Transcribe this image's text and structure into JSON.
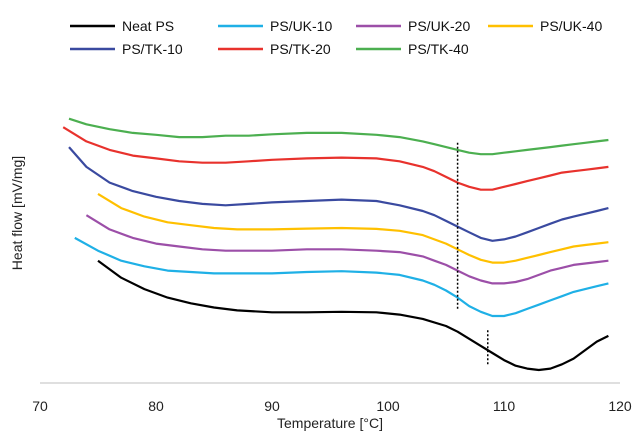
{
  "chart_data": {
    "type": "line",
    "xlabel": "Temperature [°C]",
    "ylabel": "Heat flow [mV/mg]",
    "xlim": [
      70,
      120
    ],
    "xticks": [
      70,
      80,
      90,
      100,
      110,
      120
    ],
    "ylim": [
      0,
      100
    ],
    "y_ticks_shown": false,
    "grid": false,
    "legend_position": "top",
    "series": [
      {
        "name": "Neat PS",
        "color": "#000000",
        "x": [
          75,
          77,
          79,
          81,
          83,
          85,
          87,
          90,
          93,
          96,
          99,
          101,
          103,
          105,
          106,
          107,
          108,
          109,
          110,
          111,
          112,
          113,
          114,
          115,
          116,
          117,
          118,
          119
        ],
        "y": [
          38.5,
          32.5,
          28.5,
          25.5,
          23.5,
          22,
          21,
          20.3,
          20.3,
          20.5,
          20.3,
          19.5,
          18,
          15.5,
          13.5,
          11,
          8.5,
          6,
          3.5,
          1.5,
          0.5,
          0,
          0.5,
          2,
          4,
          7,
          10,
          12
        ]
      },
      {
        "name": "PS/UK-10",
        "color": "#1fb0e6",
        "x": [
          73,
          75,
          77,
          79,
          81,
          83,
          85,
          87,
          90,
          93,
          96,
          99,
          101,
          103,
          104,
          105,
          106,
          107,
          108,
          109,
          110,
          111,
          112,
          113,
          114,
          115,
          116,
          117,
          118,
          119
        ],
        "y": [
          46.5,
          42,
          38.5,
          36.5,
          35,
          34.5,
          34,
          34,
          34,
          34.5,
          34.8,
          34.3,
          33.5,
          31.5,
          30,
          28,
          25.5,
          22.5,
          20.5,
          19,
          19,
          20,
          21.5,
          23,
          24.5,
          26,
          27.5,
          28.5,
          29.5,
          30.5
        ]
      },
      {
        "name": "PS/UK-20",
        "color": "#9c4fa8",
        "x": [
          74,
          76,
          78,
          80,
          82,
          84,
          86,
          88,
          90,
          93,
          96,
          99,
          101,
          103,
          104,
          105,
          106,
          107,
          108,
          109,
          110,
          111,
          112,
          113,
          114,
          115,
          116,
          117,
          118,
          119
        ],
        "y": [
          54.5,
          49.5,
          46.5,
          44.5,
          43.5,
          42.5,
          42,
          42,
          42,
          42.5,
          42.5,
          42,
          41.5,
          40,
          38.5,
          37,
          35,
          33,
          31.5,
          30.5,
          30.5,
          31,
          32,
          33.5,
          35,
          36,
          37,
          37.5,
          38,
          38.5
        ]
      },
      {
        "name": "PS/UK-40",
        "color": "#ffc000",
        "x": [
          75,
          77,
          79,
          81,
          83,
          85,
          87,
          90,
          93,
          96,
          99,
          101,
          103,
          104,
          105,
          106,
          107,
          108,
          109,
          110,
          111,
          112,
          113,
          114,
          115,
          116,
          117,
          118,
          119
        ],
        "y": [
          62,
          57,
          54,
          52,
          51,
          50,
          49.5,
          49.5,
          49.8,
          50,
          49.7,
          49,
          47.5,
          46,
          44.5,
          42.5,
          40.5,
          38.8,
          37.8,
          37.8,
          38.5,
          39.5,
          40.5,
          41.5,
          42.5,
          43.5,
          44,
          44.5,
          45
        ]
      },
      {
        "name": "PS/TK-10",
        "color": "#3a4aa0",
        "x": [
          72.5,
          74,
          76,
          78,
          80,
          82,
          84,
          86,
          88,
          90,
          93,
          96,
          99,
          101,
          103,
          104,
          105,
          106,
          107,
          108,
          109,
          110,
          111,
          112,
          113,
          114,
          115,
          116,
          117,
          118,
          119
        ],
        "y": [
          78.5,
          71.5,
          66,
          63,
          61,
          59.5,
          58.5,
          58,
          58.5,
          59,
          59.5,
          60,
          59.5,
          58,
          56,
          54.5,
          52.5,
          50.5,
          48.5,
          46.5,
          45.5,
          46,
          47,
          48.5,
          50,
          51.5,
          53,
          54,
          55,
          56,
          57
        ]
      },
      {
        "name": "PS/TK-20",
        "color": "#e8322d",
        "x": [
          72,
          74,
          76,
          78,
          80,
          82,
          84,
          86,
          88,
          90,
          93,
          96,
          99,
          101,
          103,
          104,
          105,
          106,
          107,
          108,
          109,
          110,
          111,
          112,
          113,
          114,
          115,
          116,
          117,
          118,
          119
        ],
        "y": [
          85.5,
          80.5,
          77.5,
          75.5,
          74.5,
          73.5,
          73,
          73,
          73.5,
          74,
          74.5,
          74.8,
          74.5,
          73.5,
          71.5,
          70,
          68,
          66,
          64.5,
          63.5,
          63.5,
          64.5,
          65.5,
          66.5,
          67.5,
          68.5,
          69.5,
          70,
          70.5,
          71,
          71.5
        ]
      },
      {
        "name": "PS/TK-40",
        "color": "#4caf50",
        "x": [
          72.5,
          74,
          76,
          78,
          80,
          82,
          84,
          86,
          88,
          90,
          93,
          96,
          99,
          101,
          103,
          104,
          105,
          106,
          107,
          108,
          109,
          110,
          111,
          112,
          113,
          114,
          115,
          116,
          117,
          118,
          119
        ],
        "y": [
          88.5,
          86.5,
          84.8,
          83.5,
          82.8,
          82,
          82,
          82.5,
          82.5,
          83,
          83.5,
          83.5,
          82.8,
          82,
          80.5,
          79.5,
          78.5,
          77.5,
          76.5,
          76,
          76,
          76.5,
          77,
          77.5,
          78,
          78.5,
          79,
          79.5,
          80,
          80.5,
          81
        ]
      }
    ],
    "reference_lines": [
      {
        "x": 106,
        "y_from": 21,
        "y_to": 80
      },
      {
        "x": 108.6,
        "y_from": 2,
        "y_to": 14
      }
    ]
  }
}
